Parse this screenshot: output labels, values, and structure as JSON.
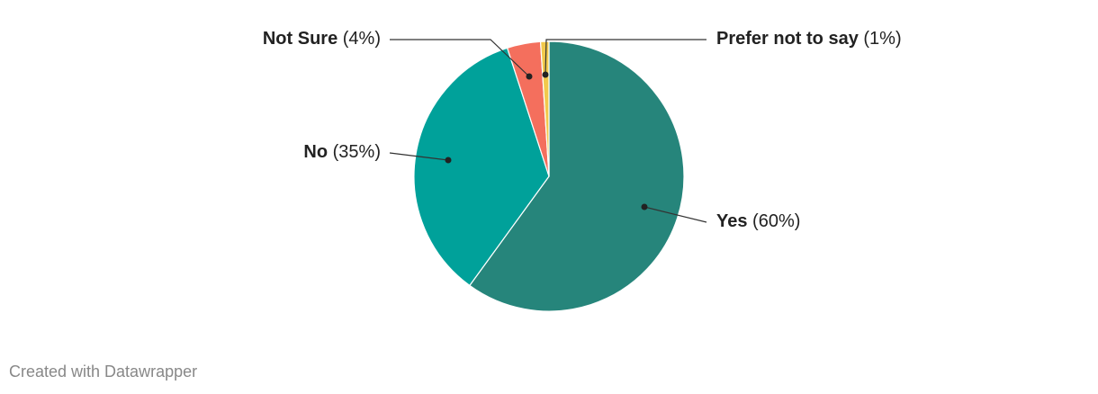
{
  "chart_data": {
    "type": "pie",
    "categories": [
      "Yes",
      "No",
      "Not Sure",
      "Prefer not to say"
    ],
    "values": [
      60,
      35,
      4,
      1
    ],
    "value_labels": [
      "(60%)",
      "(35%)",
      "(4%)",
      "(1%)"
    ],
    "colors": [
      "#26857b",
      "#00a19a",
      "#f46f5d",
      "#f2c94c"
    ]
  },
  "footer": "Created with Datawrapper"
}
